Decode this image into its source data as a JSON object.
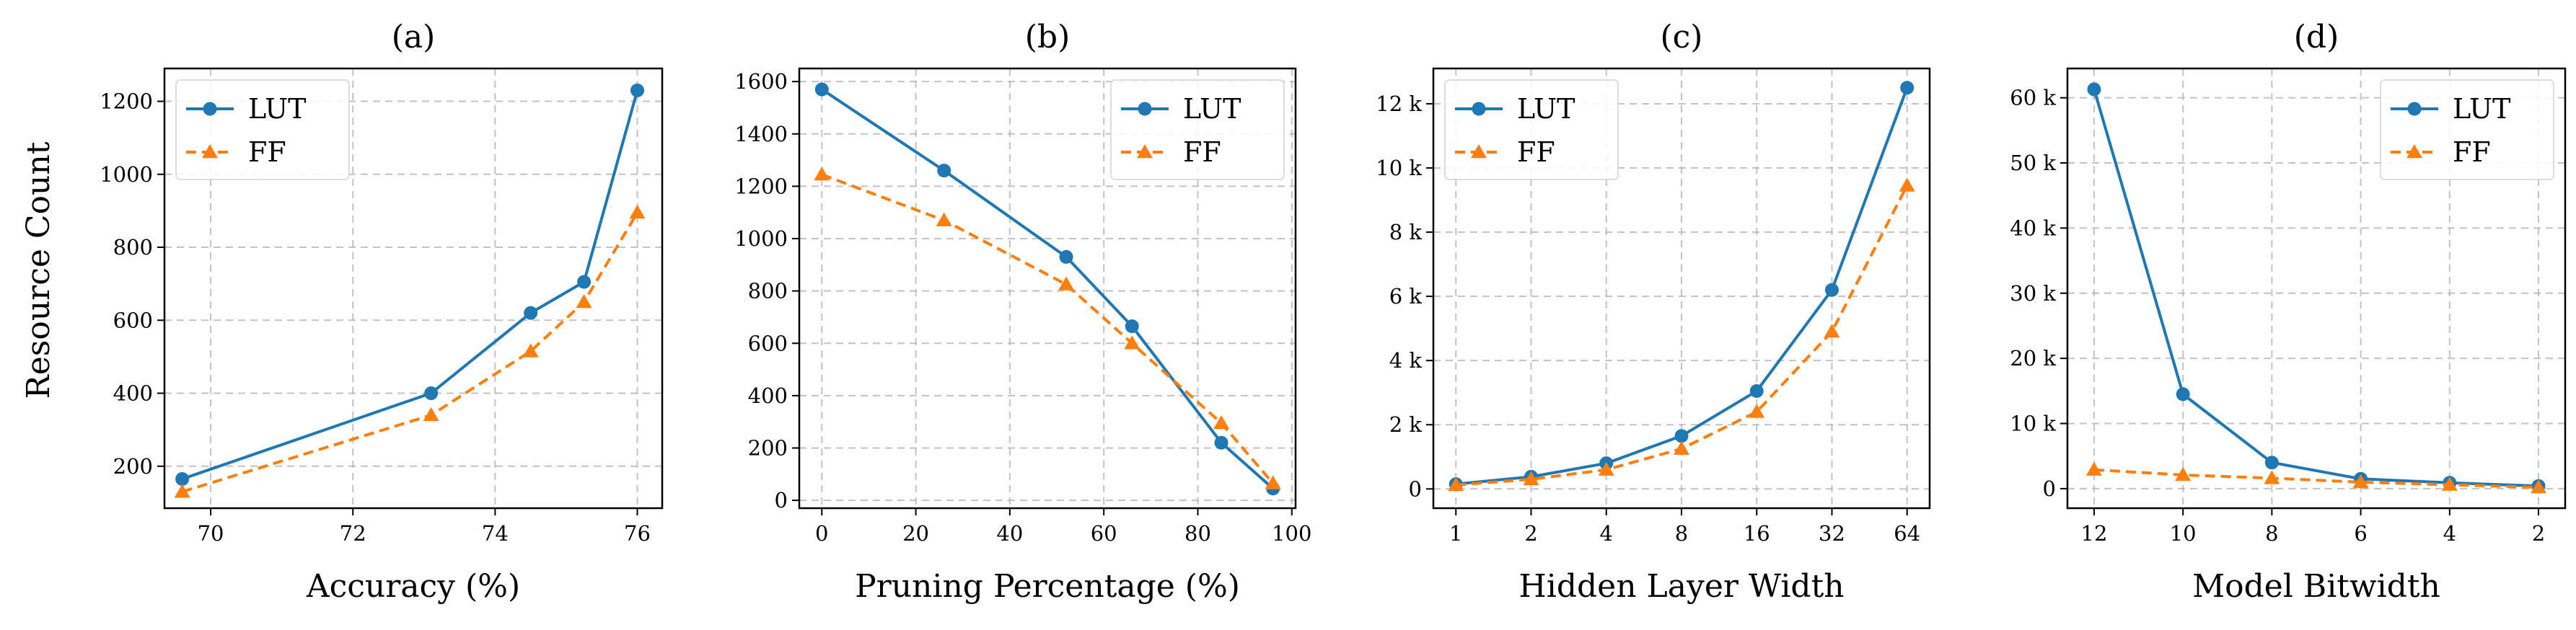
{
  "figure": {
    "ylabel": "Resource Count"
  },
  "chart_data": [
    {
      "type": "line",
      "title": "(a)",
      "xlabel": "Accuracy (%)",
      "ylabel": "Resource Count",
      "x_scale": "linear",
      "x": [
        69.6,
        73.1,
        74.5,
        75.25,
        76.0
      ],
      "xticks": [
        70,
        72,
        74,
        76
      ],
      "xtick_labels": [
        "70",
        "72",
        "74",
        "76"
      ],
      "xlim": [
        69.35,
        76.35
      ],
      "yticks": [
        200,
        400,
        600,
        800,
        1000,
        1200
      ],
      "ytick_labels": [
        "200",
        "400",
        "600",
        "800",
        "1000",
        "1200"
      ],
      "ylim": [
        85,
        1290
      ],
      "grid": true,
      "legend_position": "top-left",
      "series": [
        {
          "name": "LUT",
          "values": [
            165,
            400,
            620,
            705,
            1230
          ],
          "color": "#1f77b4",
          "marker": "circle",
          "line": "solid"
        },
        {
          "name": "FF",
          "values": [
            130,
            340,
            515,
            650,
            895
          ],
          "color": "#ff7f0e",
          "marker": "triangle",
          "line": "dashed"
        }
      ]
    },
    {
      "type": "line",
      "title": "(b)",
      "xlabel": "Pruning Percentage (%)",
      "ylabel": "",
      "x_scale": "linear",
      "x": [
        0,
        26,
        52,
        66,
        85,
        96
      ],
      "xticks": [
        0,
        20,
        40,
        60,
        80,
        100
      ],
      "xtick_labels": [
        "0",
        "20",
        "40",
        "60",
        "80",
        "100"
      ],
      "xlim": [
        -4.8,
        100.8
      ],
      "yticks": [
        0,
        200,
        400,
        600,
        800,
        1000,
        1200,
        1400,
        1600
      ],
      "ytick_labels": [
        "0",
        "200",
        "400",
        "600",
        "800",
        "1000",
        "1200",
        "1400",
        "1600"
      ],
      "ylim": [
        -30,
        1650
      ],
      "grid": true,
      "legend_position": "top-right",
      "series": [
        {
          "name": "LUT",
          "values": [
            1570,
            1260,
            930,
            665,
            220,
            45
          ],
          "color": "#1f77b4",
          "marker": "circle",
          "line": "solid"
        },
        {
          "name": "FF",
          "values": [
            1245,
            1070,
            825,
            600,
            295,
            65
          ],
          "color": "#ff7f0e",
          "marker": "triangle",
          "line": "dashed"
        }
      ]
    },
    {
      "type": "line",
      "title": "(c)",
      "xlabel": "Hidden Layer Width",
      "ylabel": "",
      "x_scale": "categorical",
      "categories": [
        "1",
        "2",
        "4",
        "8",
        "16",
        "32",
        "64"
      ],
      "yticks": [
        0,
        2000,
        4000,
        6000,
        8000,
        10000,
        12000
      ],
      "ytick_labels": [
        "0",
        "2 k",
        "4 k",
        "6 k",
        "8 k",
        "10 k",
        "12 k"
      ],
      "ylim": [
        -600,
        13100
      ],
      "grid": true,
      "legend_position": "top-left",
      "series": [
        {
          "name": "LUT",
          "values": [
            150,
            380,
            800,
            1650,
            3050,
            6200,
            12500
          ],
          "color": "#1f77b4",
          "marker": "circle",
          "line": "solid"
        },
        {
          "name": "FF",
          "values": [
            120,
            300,
            600,
            1250,
            2400,
            4900,
            9450
          ],
          "color": "#ff7f0e",
          "marker": "triangle",
          "line": "dashed"
        }
      ]
    },
    {
      "type": "line",
      "title": "(d)",
      "xlabel": "Model Bitwidth",
      "ylabel": "",
      "x_scale": "categorical",
      "categories": [
        "12",
        "10",
        "8",
        "6",
        "4",
        "2"
      ],
      "yticks": [
        0,
        10000,
        20000,
        30000,
        40000,
        50000,
        60000
      ],
      "ytick_labels": [
        "0",
        "10 k",
        "20 k",
        "30 k",
        "40 k",
        "50 k",
        "60 k"
      ],
      "ylim": [
        -3000,
        64500
      ],
      "grid": true,
      "legend_position": "top-right",
      "series": [
        {
          "name": "LUT",
          "values": [
            61300,
            14500,
            4000,
            1500,
            900,
            400
          ],
          "color": "#1f77b4",
          "marker": "circle",
          "line": "solid"
        },
        {
          "name": "FF",
          "values": [
            2900,
            2100,
            1600,
            1000,
            600,
            200
          ],
          "color": "#ff7f0e",
          "marker": "triangle",
          "line": "dashed"
        }
      ]
    }
  ]
}
